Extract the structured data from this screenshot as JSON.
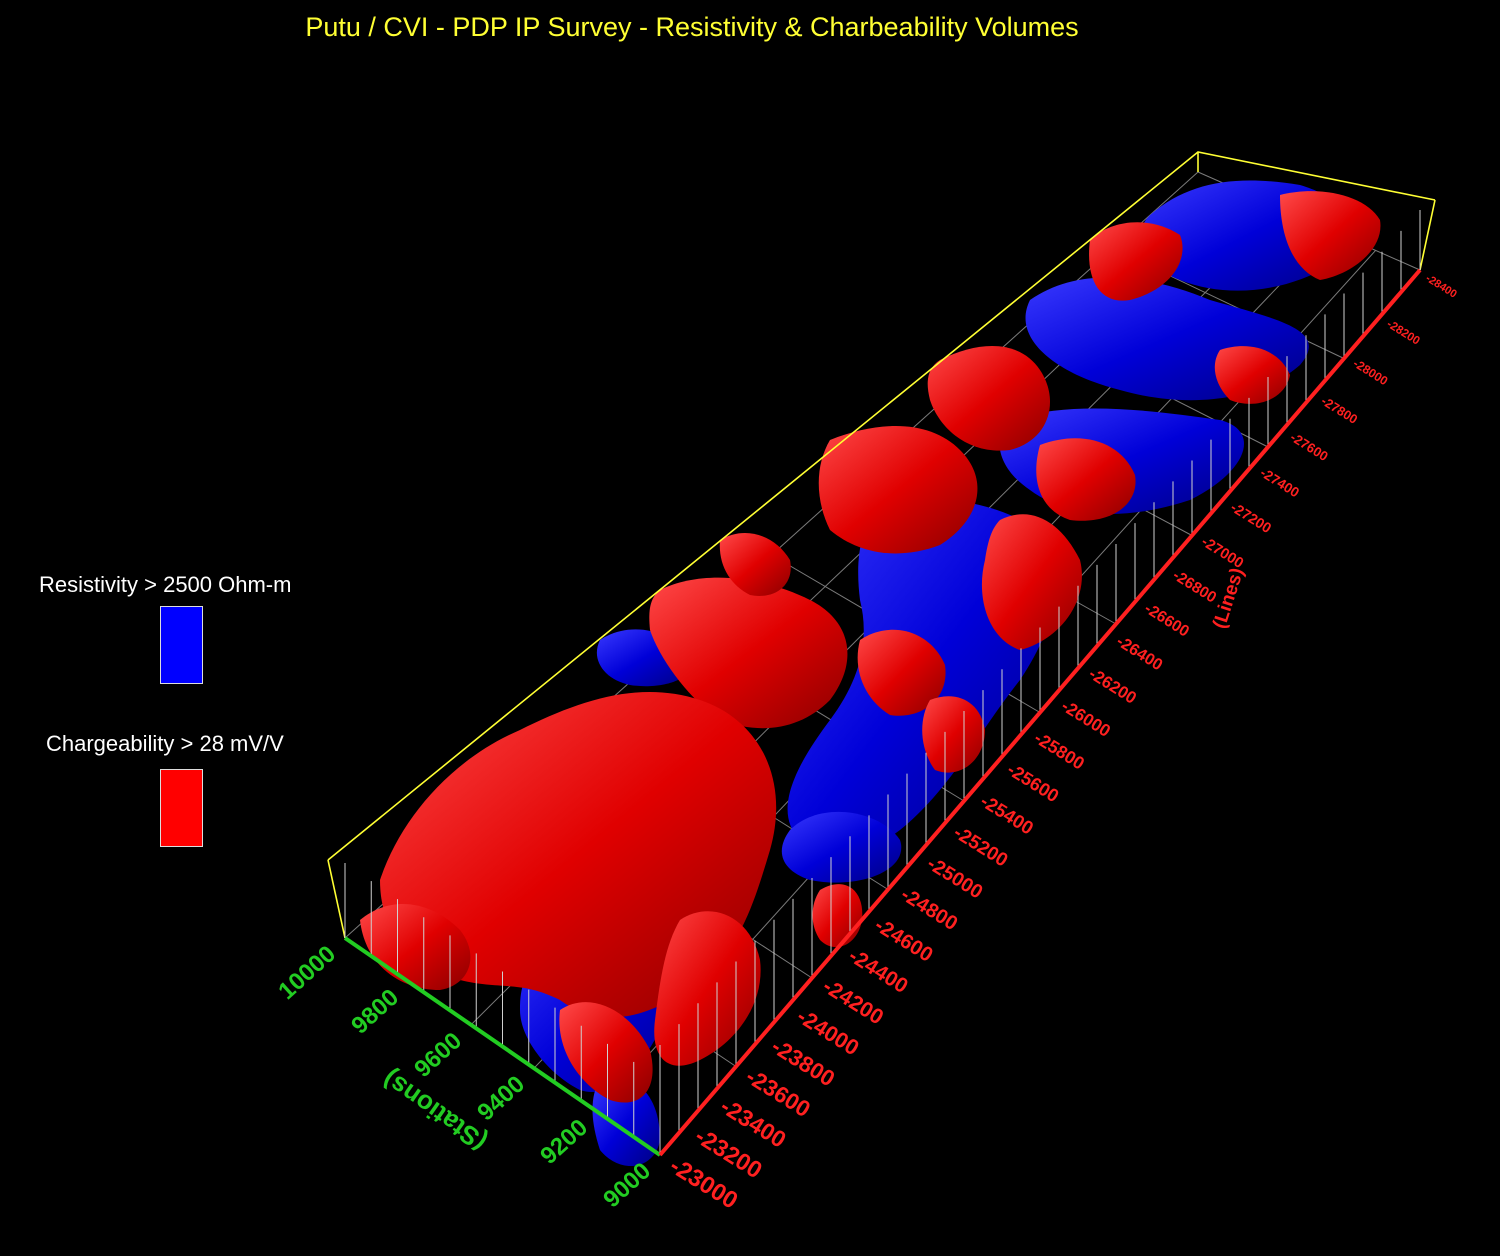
{
  "title": "Putu / CVI - PDP IP Survey - Resistivity & Charbeability Volumes",
  "legend": {
    "resistivity": {
      "label": "Resistivity > 2500 Ohm-m",
      "color": "#0000ff"
    },
    "chargeability": {
      "label": "Chargeability > 28 mV/V",
      "color": "#ff0000"
    }
  },
  "axes": {
    "stations": {
      "title": "(Stations)",
      "ticks": [
        "10000",
        "9800",
        "9600",
        "9400",
        "9200",
        "9000"
      ],
      "color": "#22cc22"
    },
    "lines": {
      "title": "(Lines)",
      "ticks": [
        "-23000",
        "-23200",
        "-23400",
        "-23600",
        "-23800",
        "-24000",
        "-24200",
        "-24400",
        "-24600",
        "-24800",
        "-25000",
        "-25200",
        "-25400",
        "-25600",
        "-25800",
        "-26000",
        "-26200",
        "-26400",
        "-26600",
        "-26800",
        "-27000",
        "-27200",
        "-27400",
        "-27600",
        "-27800",
        "-28000",
        "-28200",
        "-28400"
      ],
      "color": "#ff2020"
    }
  },
  "colors": {
    "box_edge": "#ffff33",
    "grid": "#bbbbbb",
    "background": "#000000"
  }
}
